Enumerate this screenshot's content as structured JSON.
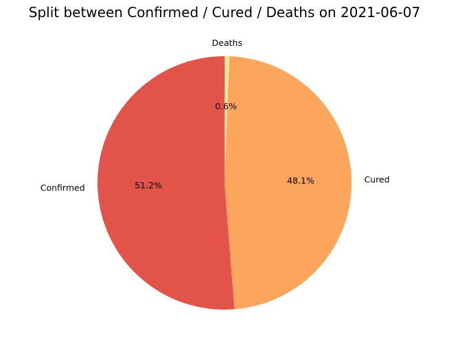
{
  "chart_data": {
    "type": "pie",
    "title": "Split between Confirmed / Cured / Deaths on 2021-06-07",
    "slices": [
      {
        "label": "Confirmed",
        "value": 51.2,
        "pct_label": "51.2%",
        "color": "#e2534a"
      },
      {
        "label": "Cured",
        "value": 48.1,
        "pct_label": "48.1%",
        "color": "#fca55d"
      },
      {
        "label": "Deaths",
        "value": 0.6,
        "pct_label": "0.6%",
        "color": "#fee999"
      }
    ],
    "start_angle_deg": 90,
    "direction": "counterclockwise"
  }
}
